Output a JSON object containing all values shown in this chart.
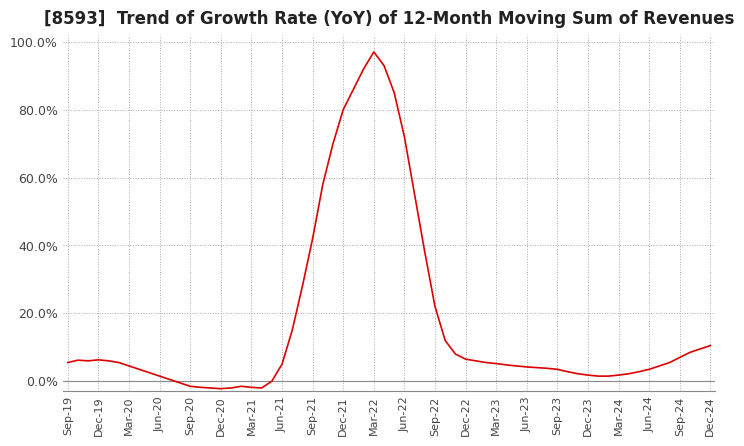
{
  "title": "[8593]  Trend of Growth Rate (YoY) of 12-Month Moving Sum of Revenues",
  "title_fontsize": 12,
  "background_color": "#ffffff",
  "grid_color": "#aaaaaa",
  "line_color": "#dd0000",
  "ylim": [
    -3,
    102
  ],
  "yticks": [
    0,
    20,
    40,
    60,
    80,
    100
  ],
  "ytick_labels": [
    "0.0%",
    "20.0%",
    "40.0%",
    "60.0%",
    "80.0%",
    "100.0%"
  ],
  "values": [
    5.5,
    6.2,
    6.0,
    6.3,
    6.0,
    5.5,
    4.5,
    3.5,
    2.5,
    1.5,
    0.5,
    -0.5,
    -1.5,
    -1.8,
    -2.0,
    -2.2,
    -2.0,
    -1.5,
    -1.8,
    -2.0,
    0.0,
    5.0,
    15.0,
    28.0,
    42.0,
    58.0,
    70.0,
    80.0,
    86.0,
    92.0,
    97.0,
    93.0,
    85.0,
    72.0,
    55.0,
    38.0,
    22.0,
    12.0,
    8.0,
    6.5,
    6.0,
    5.5,
    5.2,
    4.8,
    4.5,
    4.2,
    4.0,
    3.8,
    3.5,
    2.8,
    2.2,
    1.8,
    1.5,
    1.5,
    1.8,
    2.2,
    2.8,
    3.5,
    4.5,
    5.5,
    7.0,
    8.5,
    9.5,
    10.5
  ],
  "xtick_positions": [
    0,
    3,
    6,
    9,
    12,
    15,
    18,
    21,
    24,
    27,
    30,
    33,
    36,
    39,
    42,
    45,
    48,
    51,
    54,
    57,
    60,
    63
  ],
  "xtick_labels": [
    "Sep-19",
    "Dec-19",
    "Mar-20",
    "Jun-20",
    "Sep-20",
    "Dec-20",
    "Mar-21",
    "Jun-21",
    "Sep-21",
    "Dec-21",
    "Mar-22",
    "Jun-22",
    "Sep-22",
    "Dec-22",
    "Mar-23",
    "Jun-23",
    "Sep-23",
    "Dec-23",
    "Mar-24",
    "Jun-24",
    "Sep-24",
    "Dec-24"
  ]
}
